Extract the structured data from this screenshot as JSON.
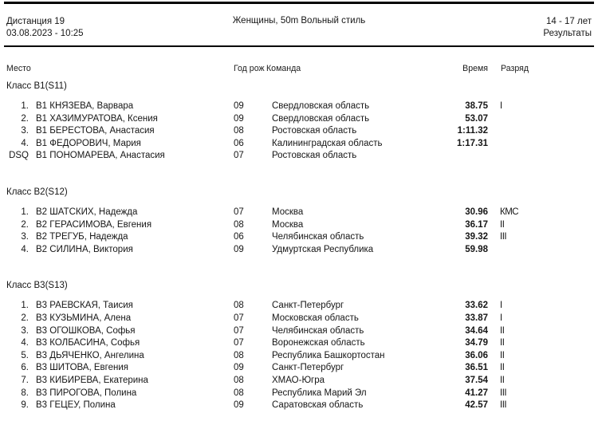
{
  "header": {
    "event_label": "Дистанция 19",
    "datetime": "03.08.2023 - 10:25",
    "title": "Женщины, 50m Вольный стиль",
    "age_group": "14 - 17 лет",
    "results_label": "Результаты"
  },
  "columns": {
    "place": "Место",
    "year_clipped": "Год рож",
    "team": "Команда",
    "time": "Время",
    "rank": "Разряд"
  },
  "sections": [
    {
      "heading": "Класс B1(S11)",
      "rows": [
        {
          "place": "1.",
          "name": "B1 КНЯЗЕВА, Варвара",
          "year": "09",
          "team": "Свердловская область",
          "time": "38.75",
          "rank": "I"
        },
        {
          "place": "2.",
          "name": "B1 ХАЗИМУРАТОВА, Ксения",
          "year": "09",
          "team": "Свердловская область",
          "time": "53.07",
          "rank": ""
        },
        {
          "place": "3.",
          "name": "B1 БЕРЕСТОВА, Анастасия",
          "year": "08",
          "team": "Ростовская область",
          "time": "1:11.32",
          "rank": ""
        },
        {
          "place": "4.",
          "name": "B1 ФЕДОРОВИЧ, Мария",
          "year": "06",
          "team": "Калининградская область",
          "time": "1:17.31",
          "rank": ""
        },
        {
          "place": "DSQ",
          "name": "B1 ПОНОМАРЕВА, Анастасия",
          "year": "07",
          "team": "Ростовская область",
          "time": "",
          "rank": ""
        }
      ]
    },
    {
      "heading": "Класс B2(S12)",
      "rows": [
        {
          "place": "1.",
          "name": "B2 ШАТСКИХ, Надежда",
          "year": "07",
          "team": "Москва",
          "time": "30.96",
          "rank": "КМС"
        },
        {
          "place": "2.",
          "name": "B2 ГЕРАСИМОВА, Евгения",
          "year": "08",
          "team": "Москва",
          "time": "36.17",
          "rank": "II"
        },
        {
          "place": "3.",
          "name": "B2 ТРЕГУБ, Надежда",
          "year": "06",
          "team": "Челябинская область",
          "time": "39.32",
          "rank": "III"
        },
        {
          "place": "4.",
          "name": "B2 СИЛИНА, Виктория",
          "year": "09",
          "team": "Удмуртская Республика",
          "time": "59.98",
          "rank": ""
        }
      ]
    },
    {
      "heading": "Класс B3(S13)",
      "rows": [
        {
          "place": "1.",
          "name": "B3 РАЕВСКАЯ, Таисия",
          "year": "08",
          "team": "Санкт-Петербург",
          "time": "33.62",
          "rank": "I"
        },
        {
          "place": "2.",
          "name": "B3 КУЗЬМИНА, Алена",
          "year": "07",
          "team": "Московская область",
          "time": "33.87",
          "rank": "I"
        },
        {
          "place": "3.",
          "name": "B3 ОГОШКОВА, Софья",
          "year": "07",
          "team": "Челябинская область",
          "time": "34.64",
          "rank": "II"
        },
        {
          "place": "4.",
          "name": "B3 КОЛБАСИНА, Софья",
          "year": "07",
          "team": "Воронежская область",
          "time": "34.79",
          "rank": "II"
        },
        {
          "place": "5.",
          "name": "B3 ДЬЯЧЕНКО, Ангелина",
          "year": "08",
          "team": "Республика Башкортостан",
          "time": "36.06",
          "rank": "II"
        },
        {
          "place": "6.",
          "name": "B3 ШИТОВА, Евгения",
          "year": "09",
          "team": "Санкт-Петербург",
          "time": "36.51",
          "rank": "II"
        },
        {
          "place": "7.",
          "name": "B3 КИБИРЕВА, Екатерина",
          "year": "08",
          "team": "ХМАО-Югра",
          "time": "37.54",
          "rank": "II"
        },
        {
          "place": "8.",
          "name": "B3 ПИРОГОВА, Полина",
          "year": "08",
          "team": "Республика Марий Эл",
          "time": "41.27",
          "rank": "III"
        },
        {
          "place": "9.",
          "name": "B3 ГЕЦЕУ, Полина",
          "year": "09",
          "team": "Саратовская область",
          "time": "42.57",
          "rank": "III"
        }
      ]
    }
  ],
  "colors": {
    "text": "#161616",
    "line": "#000000",
    "background": "#ffffff"
  }
}
